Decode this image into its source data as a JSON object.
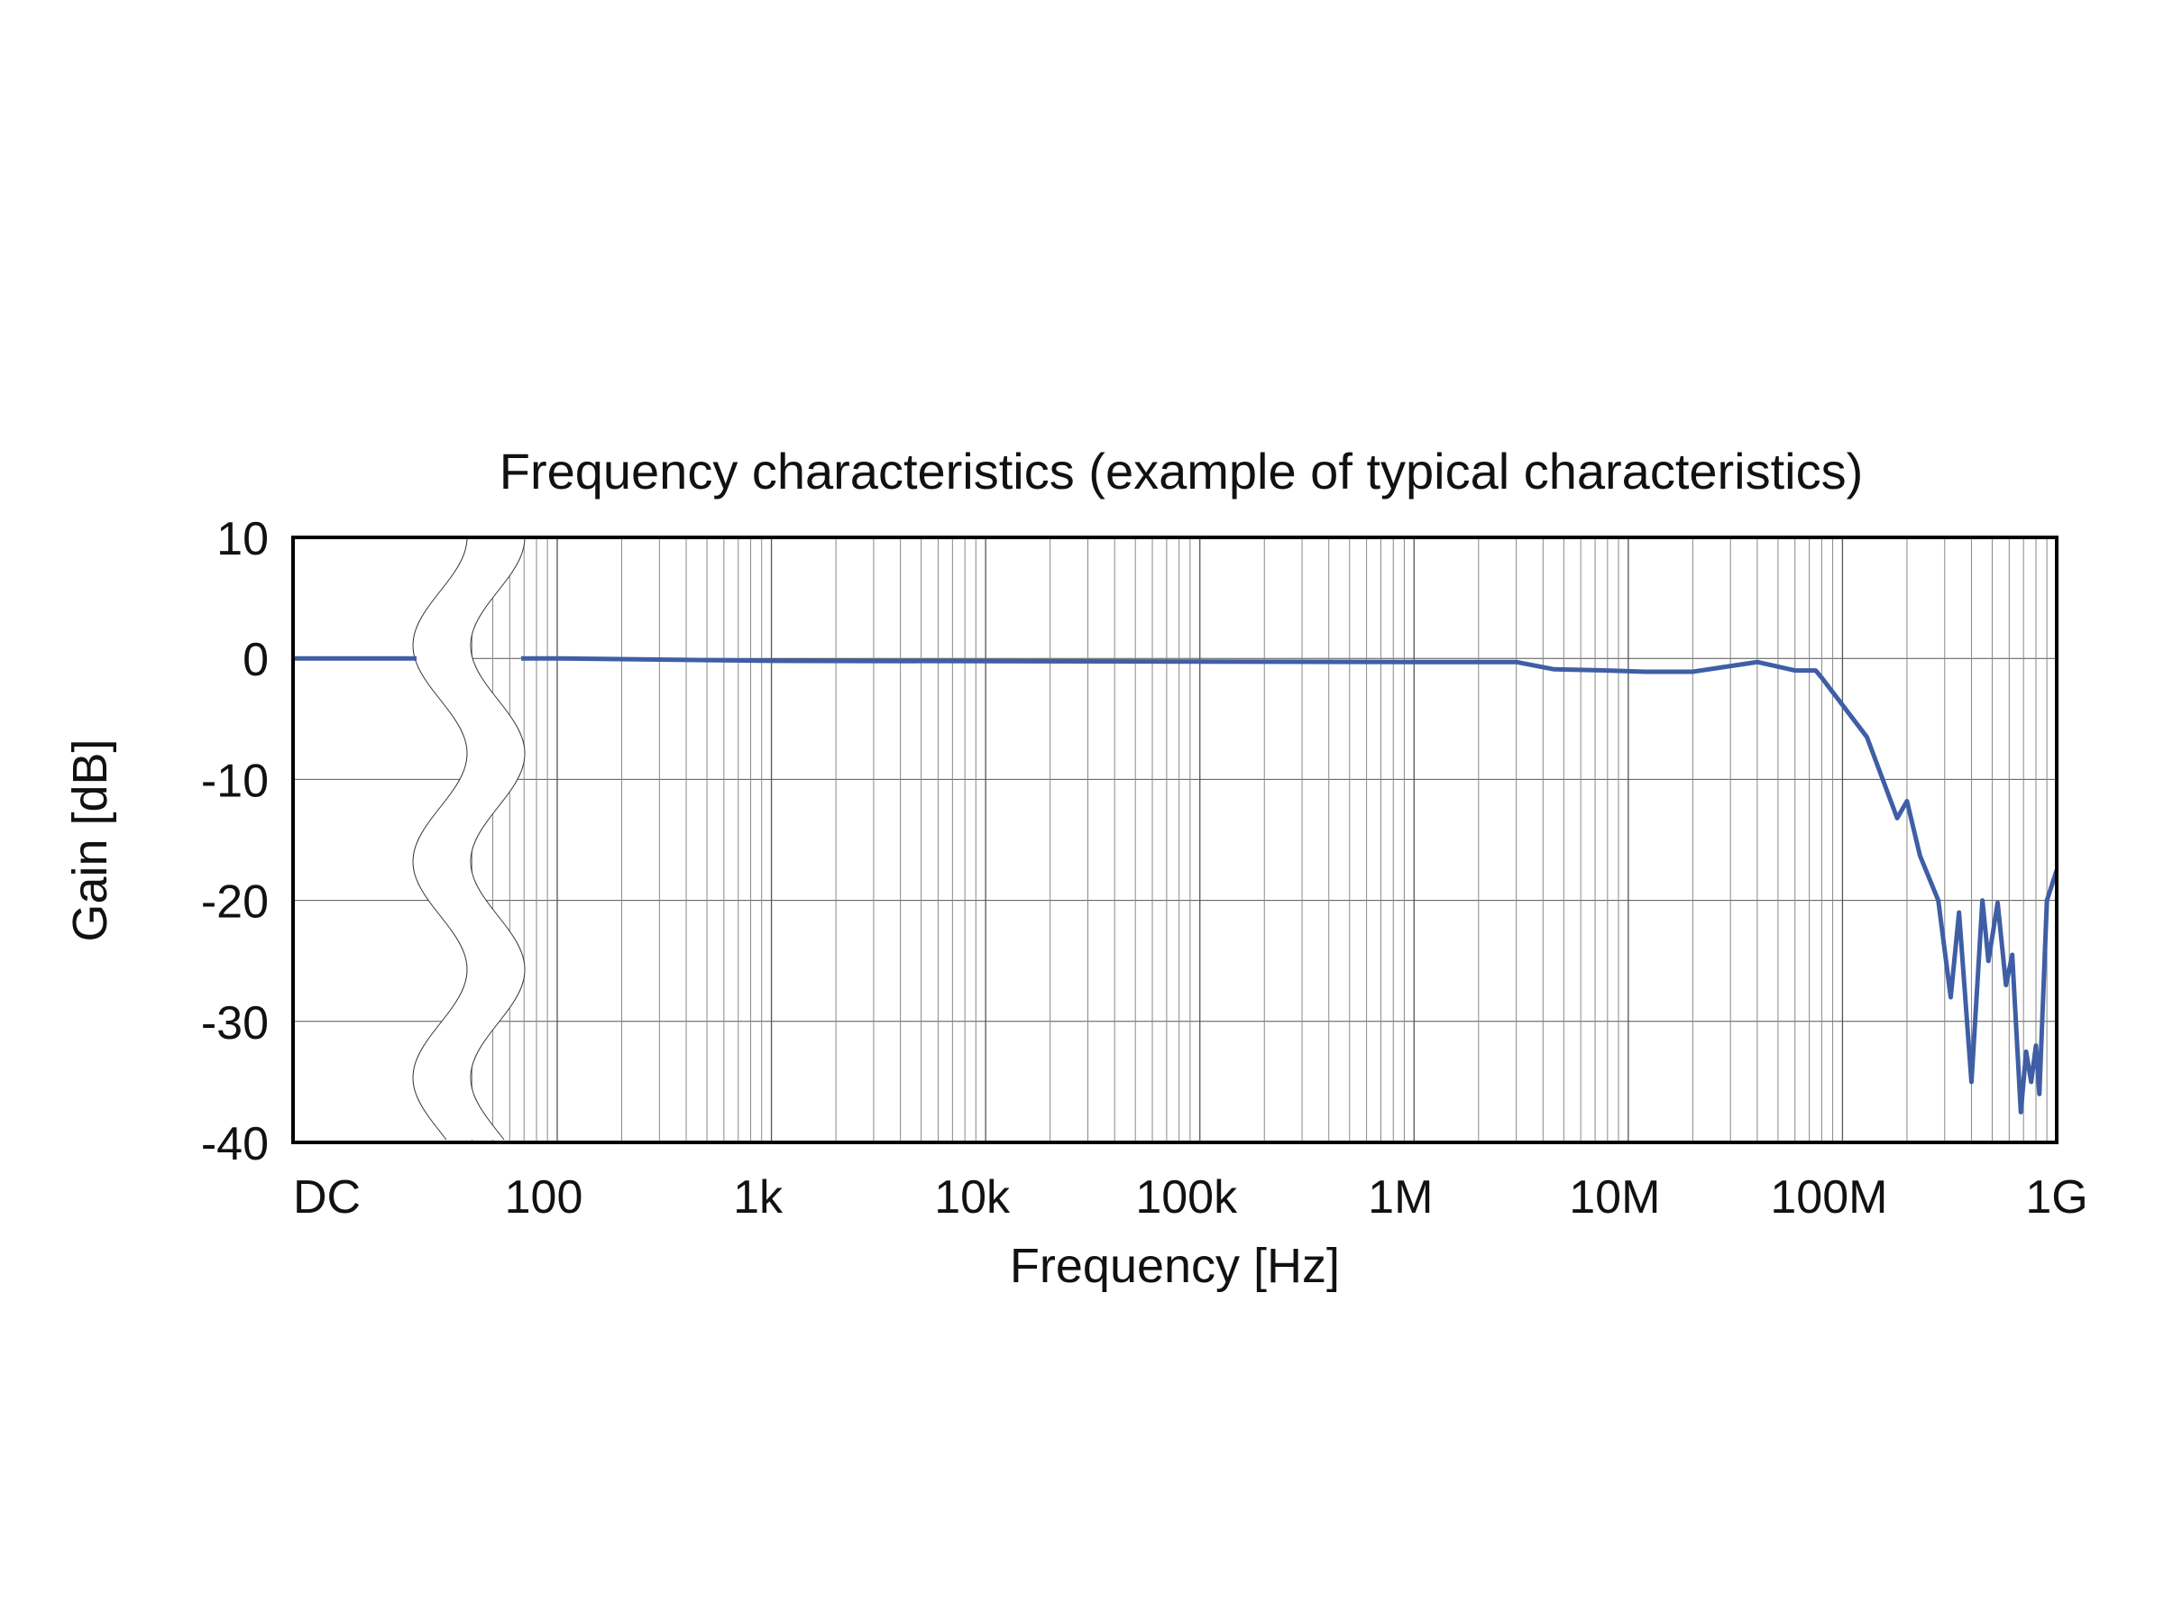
{
  "chart_data": {
    "type": "line",
    "title": "Frequency characteristics (example of typical characteristics)",
    "xlabel": "Frequency [Hz]",
    "ylabel": "Gain [dB]",
    "x_scale": "log with axis break after DC",
    "xlim": [
      "DC",
      1000000000
    ],
    "ylim": [
      -40,
      10
    ],
    "grid": true,
    "x_tick_labels": [
      "DC",
      "100",
      "1k",
      "10k",
      "100k",
      "1M",
      "10M",
      "100M",
      "1G"
    ],
    "x_tick_values": [
      0,
      100,
      1000,
      10000,
      100000,
      1000000,
      10000000,
      100000000,
      1000000000
    ],
    "y_ticks": [
      10,
      0,
      -10,
      -20,
      -30,
      -40
    ],
    "line_color": "#3f5ea5",
    "series": [
      {
        "dc_value": 0,
        "x": [
          100,
          1000,
          1000000,
          3000000,
          4500000,
          8000000,
          12000000,
          20000000,
          40000000,
          60000000,
          75000000,
          80000000,
          130000000,
          180000000,
          200000000,
          230000000,
          280000000,
          320000000,
          350000000,
          400000000,
          450000000,
          480000000,
          530000000,
          580000000,
          620000000,
          680000000,
          720000000,
          760000000,
          800000000,
          830000000,
          900000000,
          1000000000
        ],
        "y": [
          0,
          -0.2,
          -0.3,
          -0.3,
          -0.9,
          -1.0,
          -1.1,
          -1.1,
          -0.3,
          -1.0,
          -1.0,
          -1.6,
          -6.5,
          -13.2,
          -11.8,
          -16.3,
          -20,
          -28,
          -21,
          -35,
          -20,
          -25,
          -20.2,
          -27,
          -24.5,
          -37.5,
          -32.5,
          -35,
          -32,
          -36,
          -20,
          -17.5
        ]
      }
    ]
  }
}
